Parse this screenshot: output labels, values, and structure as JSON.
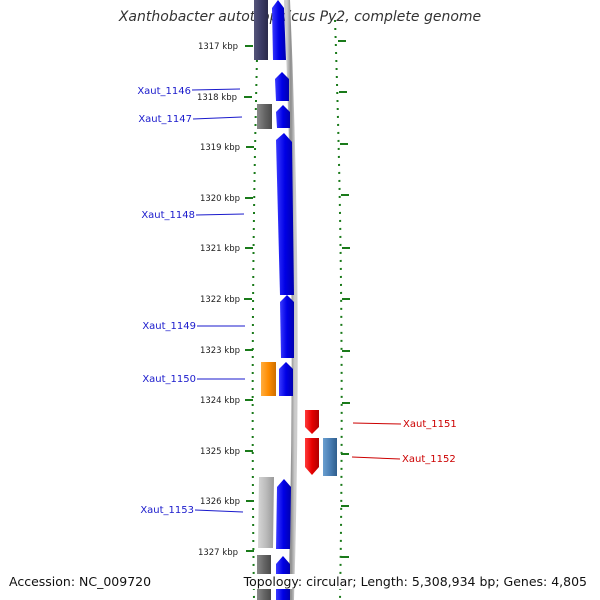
{
  "title": "Xanthobacter autotrophicus Py2, complete genome",
  "accession": "Accession: NC_009720",
  "footer": "Topology: circular; Length: 5,308,934 bp; Genes: 4,805",
  "colors": {
    "forward_gene": "#0000e6",
    "reverse_gene": "#e60000",
    "forward_label": "#1a1acc",
    "reverse_label": "#cc0000",
    "tick": "#1a7a1a",
    "backbone": "#999999",
    "gray_feature": "#777777",
    "light_gray_feature": "#bbbbbb",
    "orange_feature": "#ff8c00",
    "steelblue_feature": "#4a7fb5"
  },
  "ticks": [
    "1317 kbp",
    "1318 kbp",
    "1319 kbp",
    "1320 kbp",
    "1321 kbp",
    "1322 kbp",
    "1323 kbp",
    "1324 kbp",
    "1325 kbp",
    "1326 kbp",
    "1327 kbp"
  ],
  "genes": [
    {
      "name": "Xaut_1146",
      "strand": "forward"
    },
    {
      "name": "Xaut_1147",
      "strand": "forward"
    },
    {
      "name": "Xaut_1148",
      "strand": "forward"
    },
    {
      "name": "Xaut_1149",
      "strand": "forward"
    },
    {
      "name": "Xaut_1150",
      "strand": "forward"
    },
    {
      "name": "Xaut_1151",
      "strand": "reverse"
    },
    {
      "name": "Xaut_1152",
      "strand": "reverse"
    },
    {
      "name": "Xaut_1153",
      "strand": "forward"
    }
  ]
}
